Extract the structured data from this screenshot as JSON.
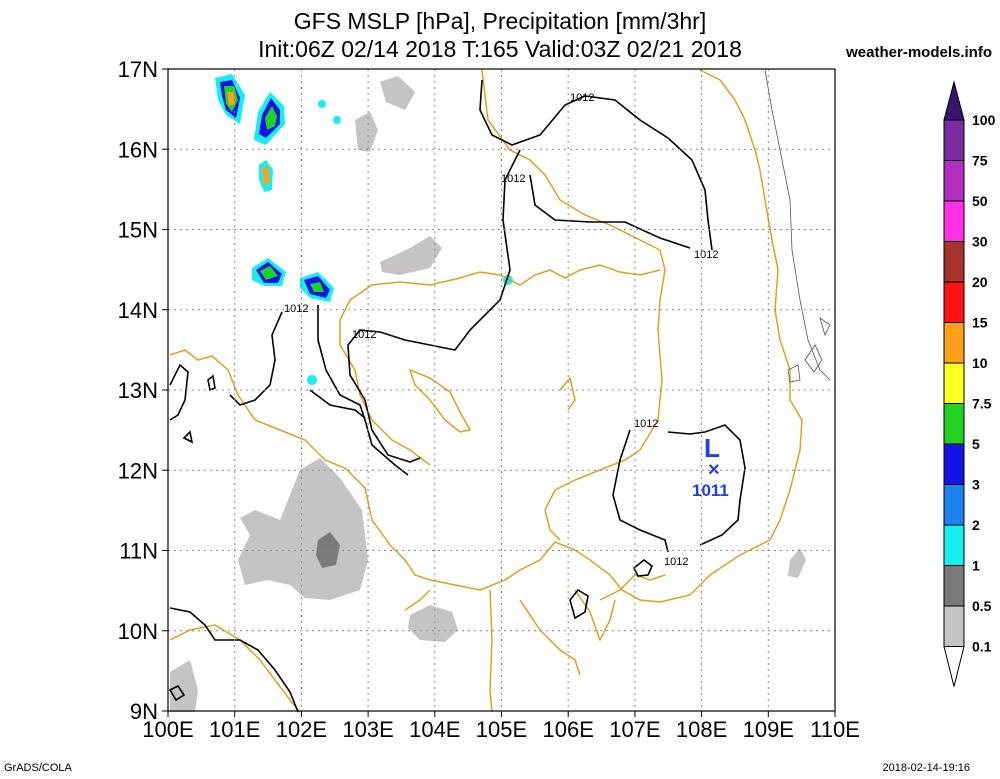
{
  "header": {
    "title_line1": "GFS MSLP [hPa], Precipitation [mm/3hr]",
    "title_line2": "Init:06Z 02/14 2018 T:165 Valid:03Z 02/21 2018",
    "site": "weather-models.info"
  },
  "footer": {
    "left": "GrADS/COLA",
    "right": "2018-02-14-19:16"
  },
  "axes": {
    "lat_labels": [
      "17N",
      "16N",
      "15N",
      "14N",
      "13N",
      "12N",
      "11N",
      "10N",
      "9N"
    ],
    "lon_labels": [
      "100E",
      "101E",
      "102E",
      "103E",
      "104E",
      "105E",
      "106E",
      "107E",
      "108E",
      "109E",
      "110E"
    ],
    "lat_range": [
      9,
      17
    ],
    "lon_range": [
      100,
      110
    ],
    "grid": "dotted"
  },
  "isobars": {
    "label": "1012"
  },
  "low": {
    "letter": "L",
    "marker": "×",
    "value": "1011",
    "lon": 108.2,
    "lat": 12.0
  },
  "colorbar": {
    "levels": [
      {
        "label": "100",
        "color": "#7a2ba0"
      },
      {
        "label": "75",
        "color": "#b22fc0"
      },
      {
        "label": "50",
        "color": "#ff2fe6"
      },
      {
        "label": "30",
        "color": "#a8332c"
      },
      {
        "label": "20",
        "color": "#ff1414"
      },
      {
        "label": "15",
        "color": "#ff9f1a"
      },
      {
        "label": "10",
        "color": "#ffff22"
      },
      {
        "label": "7.5",
        "color": "#22d222"
      },
      {
        "label": "5",
        "color": "#1414e6"
      },
      {
        "label": "3",
        "color": "#1e82f0"
      },
      {
        "label": "2",
        "color": "#14f0f0"
      },
      {
        "label": "1",
        "color": "#7a7a7a"
      },
      {
        "label": "0.5",
        "color": "#c4c4c4"
      },
      {
        "label": "0.1",
        "color": "#ffffff"
      }
    ],
    "top_color": "#3a1270"
  },
  "colors": {
    "coast": "#e0a020",
    "isobar": "#000000",
    "low": "#2040e0"
  }
}
